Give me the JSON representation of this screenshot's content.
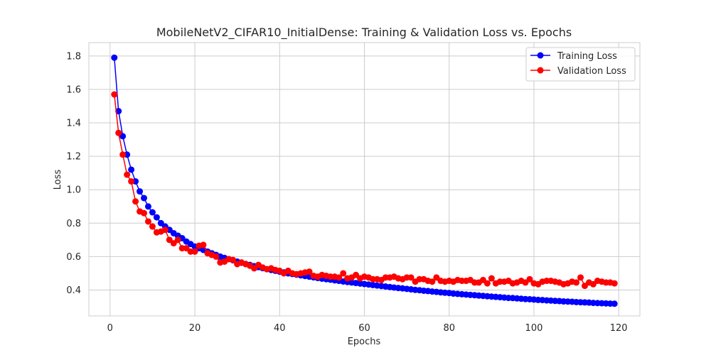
{
  "chart_data": {
    "type": "line",
    "title": "MobileNetV2_CIFAR10_InitialDense: Training & Validation Loss vs. Epochs",
    "xlabel": "Epochs",
    "ylabel": "Loss",
    "xlim": [
      -5,
      125
    ],
    "ylim": [
      0.245,
      1.88
    ],
    "xticks": [
      0,
      20,
      40,
      60,
      80,
      100,
      120
    ],
    "yticks": [
      0.4,
      0.6,
      0.8,
      1.0,
      1.2,
      1.4,
      1.6,
      1.8
    ],
    "grid": true,
    "legend_position": "top-right",
    "x": [
      1,
      2,
      3,
      4,
      5,
      6,
      7,
      8,
      9,
      10,
      11,
      12,
      13,
      14,
      15,
      16,
      17,
      18,
      19,
      20,
      21,
      22,
      23,
      24,
      25,
      26,
      27,
      28,
      29,
      30,
      31,
      32,
      33,
      34,
      35,
      36,
      37,
      38,
      39,
      40,
      41,
      42,
      43,
      44,
      45,
      46,
      47,
      48,
      49,
      50,
      51,
      52,
      53,
      54,
      55,
      56,
      57,
      58,
      59,
      60,
      61,
      62,
      63,
      64,
      65,
      66,
      67,
      68,
      69,
      70,
      71,
      72,
      73,
      74,
      75,
      76,
      77,
      78,
      79,
      80,
      81,
      82,
      83,
      84,
      85,
      86,
      87,
      88,
      89,
      90,
      91,
      92,
      93,
      94,
      95,
      96,
      97,
      98,
      99,
      100,
      101,
      102,
      103,
      104,
      105,
      106,
      107,
      108,
      109,
      110,
      111,
      112,
      113,
      114,
      115,
      116,
      117,
      118,
      119
    ],
    "series": [
      {
        "name": "Training Loss",
        "color": "#0000ff",
        "values": [
          1.79,
          1.47,
          1.32,
          1.21,
          1.12,
          1.05,
          0.99,
          0.95,
          0.9,
          0.865,
          0.835,
          0.8,
          0.78,
          0.76,
          0.74,
          0.725,
          0.71,
          0.69,
          0.675,
          0.66,
          0.65,
          0.64,
          0.63,
          0.62,
          0.61,
          0.6,
          0.592,
          0.585,
          0.578,
          0.57,
          0.563,
          0.556,
          0.55,
          0.543,
          0.537,
          0.531,
          0.525,
          0.52,
          0.515,
          0.51,
          0.505,
          0.5,
          0.496,
          0.492,
          0.488,
          0.484,
          0.48,
          0.476,
          0.472,
          0.468,
          0.465,
          0.462,
          0.458,
          0.455,
          0.451,
          0.448,
          0.445,
          0.442,
          0.439,
          0.436,
          0.433,
          0.43,
          0.427,
          0.424,
          0.421,
          0.418,
          0.415,
          0.412,
          0.41,
          0.407,
          0.404,
          0.401,
          0.399,
          0.396,
          0.394,
          0.391,
          0.389,
          0.386,
          0.384,
          0.382,
          0.379,
          0.377,
          0.375,
          0.373,
          0.371,
          0.369,
          0.367,
          0.365,
          0.363,
          0.361,
          0.359,
          0.357,
          0.355,
          0.353,
          0.352,
          0.35,
          0.348,
          0.346,
          0.345,
          0.343,
          0.341,
          0.34,
          0.338,
          0.337,
          0.335,
          0.334,
          0.332,
          0.331,
          0.33,
          0.328,
          0.327,
          0.326,
          0.325,
          0.323,
          0.322,
          0.321,
          0.32,
          0.319,
          0.318
        ]
      },
      {
        "name": "Validation Loss",
        "color": "#ff0000",
        "values": [
          1.57,
          1.34,
          1.21,
          1.09,
          1.05,
          0.93,
          0.87,
          0.86,
          0.81,
          0.78,
          0.745,
          0.75,
          0.76,
          0.7,
          0.68,
          0.7,
          0.65,
          0.65,
          0.63,
          0.63,
          0.665,
          0.67,
          0.62,
          0.61,
          0.6,
          0.565,
          0.57,
          0.585,
          0.58,
          0.555,
          0.565,
          0.555,
          0.545,
          0.53,
          0.55,
          0.535,
          0.525,
          0.53,
          0.52,
          0.515,
          0.5,
          0.515,
          0.5,
          0.495,
          0.5,
          0.505,
          0.51,
          0.485,
          0.48,
          0.49,
          0.485,
          0.48,
          0.48,
          0.475,
          0.5,
          0.47,
          0.475,
          0.49,
          0.47,
          0.48,
          0.475,
          0.465,
          0.465,
          0.46,
          0.475,
          0.475,
          0.48,
          0.47,
          0.465,
          0.475,
          0.475,
          0.45,
          0.465,
          0.465,
          0.455,
          0.45,
          0.475,
          0.455,
          0.45,
          0.455,
          0.45,
          0.46,
          0.455,
          0.455,
          0.46,
          0.445,
          0.445,
          0.46,
          0.44,
          0.47,
          0.44,
          0.45,
          0.45,
          0.455,
          0.44,
          0.445,
          0.455,
          0.445,
          0.465,
          0.44,
          0.435,
          0.45,
          0.455,
          0.455,
          0.45,
          0.445,
          0.435,
          0.44,
          0.45,
          0.445,
          0.475,
          0.425,
          0.445,
          0.435,
          0.455,
          0.45,
          0.445,
          0.445,
          0.44
        ]
      }
    ]
  }
}
